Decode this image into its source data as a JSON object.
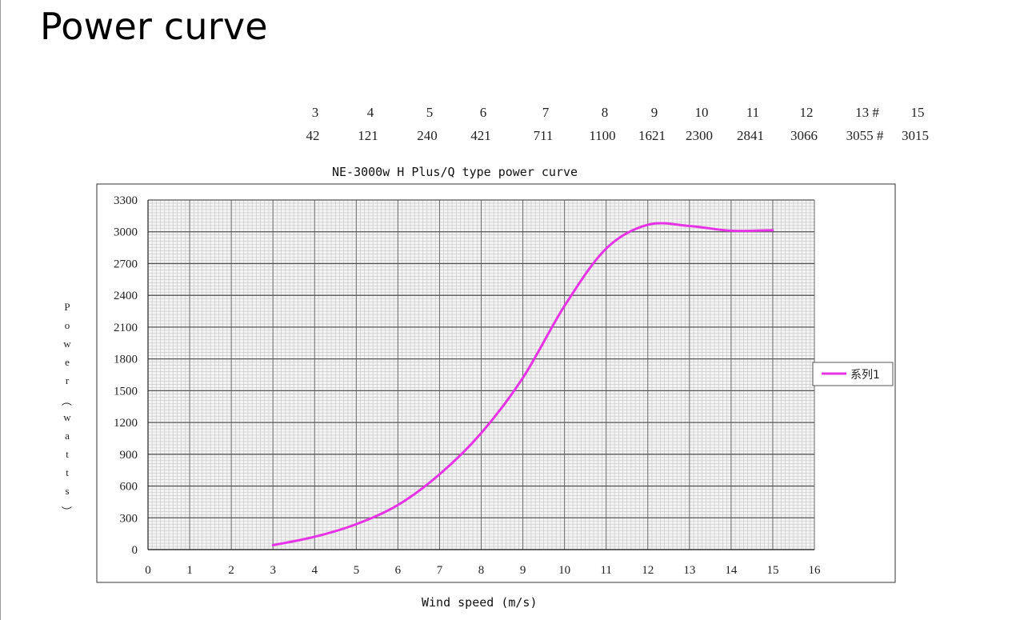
{
  "slide": {
    "title": "Power curve"
  },
  "table": {
    "speeds": [
      "3",
      "4",
      "5",
      "6",
      "7",
      "8",
      "9",
      "10",
      "11",
      "12",
      "13 #",
      "15"
    ],
    "powers": [
      "42",
      "121",
      "240",
      "421",
      "711",
      "1100",
      "1621",
      "2300",
      "2841",
      "3066",
      "3055 #",
      "3015"
    ]
  },
  "chart_data": {
    "type": "line",
    "title": "NE-3000w H Plus/Q type power curve",
    "xlabel": "Wind speed (m/s)",
    "ylabel": "Power（watts）",
    "xlim": [
      0,
      16
    ],
    "ylim": [
      0,
      3300
    ],
    "x_ticks": [
      "0",
      "1",
      "2",
      "3",
      "4",
      "5",
      "6",
      "7",
      "8",
      "9",
      "10",
      "11",
      "12",
      "13",
      "14",
      "15",
      "16"
    ],
    "y_ticks": [
      "0",
      "300",
      "600",
      "900",
      "1200",
      "1500",
      "1800",
      "2100",
      "2400",
      "2700",
      "3000",
      "3300"
    ],
    "grid": true,
    "legend_position": "right",
    "series": [
      {
        "name": "系列1",
        "color": "#e633e6",
        "x": [
          3,
          4,
          5,
          6,
          7,
          8,
          9,
          10,
          11,
          12,
          13,
          14,
          15
        ],
        "y": [
          42,
          121,
          240,
          421,
          711,
          1100,
          1621,
          2300,
          2841,
          3066,
          3055,
          3010,
          3015
        ]
      }
    ]
  }
}
